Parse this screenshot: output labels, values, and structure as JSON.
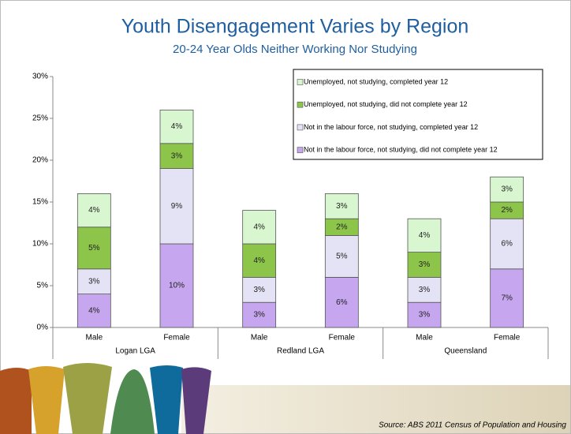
{
  "chart_data": {
    "type": "stacked-bar",
    "title": "Youth Disengagement Varies by Region",
    "subtitle": "20-24 Year Olds Neither Working Nor Studying",
    "categories": [
      "Male",
      "Female",
      "Male",
      "Female",
      "Male",
      "Female"
    ],
    "group_labels": [
      "Logan LGA",
      "Redland LGA",
      "Queensland"
    ],
    "series": [
      {
        "name": "Not in the labour force, not studying, did not complete year 12",
        "color": "#c6a6ee",
        "values": [
          4,
          10,
          3,
          6,
          3,
          7
        ],
        "value_labels": [
          "4%",
          "10%",
          "3%",
          "6%",
          "3%",
          "7%"
        ]
      },
      {
        "name": "Not in the labour force, not studying, completed year 12",
        "color": "#e4e3f5",
        "values": [
          3,
          9,
          3,
          5,
          3,
          6
        ],
        "value_labels": [
          "3%",
          "9%",
          "3%",
          "5%",
          "3%",
          "6%"
        ]
      },
      {
        "name": "Unemployed, not studying, did not complete year 12",
        "color": "#8cc54a",
        "values": [
          5,
          3,
          4,
          2,
          3,
          2
        ],
        "value_labels": [
          "5%",
          "3%",
          "4%",
          "2%",
          "3%",
          "2%"
        ]
      },
      {
        "name": "Unemployed, not studying, completed year 12",
        "color": "#d8f6cf",
        "values": [
          4,
          4,
          4,
          3,
          4,
          3
        ],
        "value_labels": [
          "4%",
          "4%",
          "4%",
          "3%",
          "4%",
          "3%"
        ]
      }
    ],
    "ylim": [
      0,
      30
    ],
    "yticks": [
      {
        "value": 0,
        "label": "0%"
      },
      {
        "value": 5,
        "label": "5%"
      },
      {
        "value": 10,
        "label": "10%"
      },
      {
        "value": 15,
        "label": "15%"
      },
      {
        "value": 20,
        "label": "20%"
      },
      {
        "value": 25,
        "label": "25%"
      },
      {
        "value": 30,
        "label": "30%"
      }
    ],
    "source": "Source: ABS 2011 Census of Population and Housing"
  }
}
